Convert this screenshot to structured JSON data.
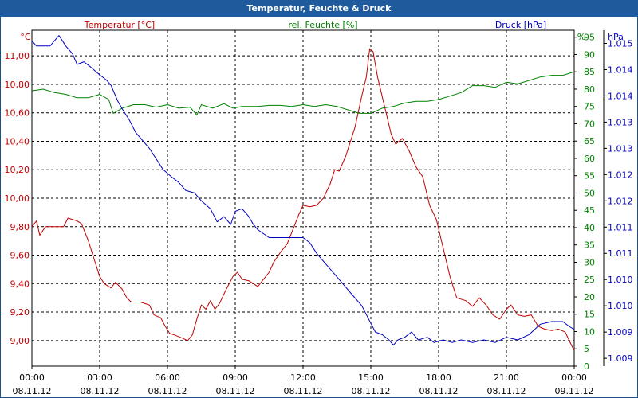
{
  "window": {
    "title": "Temperatur, Feuchte & Druck"
  },
  "colors": {
    "temperature": "#c00000",
    "humidity": "#008000",
    "pressure": "#0000c0",
    "titlebar": "#1e5a9c",
    "grid": "#000000"
  },
  "chart_data": {
    "type": "line",
    "title": "Temperatur, Feuchte & Druck",
    "grid": true,
    "x": {
      "range_hours": [
        0,
        24
      ],
      "ticks": [
        {
          "h": 0,
          "time": "00:00",
          "date": "08.11.12"
        },
        {
          "h": 3,
          "time": "03:00",
          "date": "08.11.12"
        },
        {
          "h": 6,
          "time": "06:00",
          "date": "08.11.12"
        },
        {
          "h": 9,
          "time": "09:00",
          "date": "08.11.12"
        },
        {
          "h": 12,
          "time": "12:00",
          "date": "08.11.12"
        },
        {
          "h": 15,
          "time": "15:00",
          "date": "08.11.12"
        },
        {
          "h": 18,
          "time": "18:00",
          "date": "08.11.12"
        },
        {
          "h": 21,
          "time": "21:00",
          "date": "08.11.12"
        },
        {
          "h": 24,
          "time": "00:00",
          "date": "09.11.12"
        }
      ]
    },
    "axes": {
      "temperature": {
        "label": "Temperatur [°C]",
        "unit": "°C",
        "range": [
          8.82,
          11.18
        ],
        "ticks": [
          9.0,
          9.2,
          9.4,
          9.6,
          9.8,
          10.0,
          10.2,
          10.4,
          10.6,
          10.8,
          11.0
        ],
        "tick_labels": [
          "9,00",
          "9,20",
          "9,40",
          "9,60",
          "9,80",
          "10,00",
          "10,20",
          "10,40",
          "10,60",
          "10,80",
          "11,00"
        ]
      },
      "humidity": {
        "label": "rel. Feuchte [%]",
        "unit": "%",
        "range": [
          0,
          97
        ],
        "ticks": [
          0,
          5,
          10,
          15,
          20,
          25,
          30,
          35,
          40,
          45,
          50,
          55,
          60,
          65,
          70,
          75,
          80,
          85,
          90,
          95
        ],
        "tick_labels": [
          "0",
          "5",
          "10",
          "15",
          "20",
          "25",
          "30",
          "35",
          "40",
          "45",
          "50",
          "55",
          "60",
          "65",
          "70",
          "75",
          "80",
          "85",
          "90",
          "95"
        ]
      },
      "pressure": {
        "label": "Druck [hPa]",
        "unit": "hPa",
        "range": [
          1008.85,
          1015.25
        ],
        "ticks": [
          1009.0,
          1009.5,
          1010.0,
          1010.5,
          1011.0,
          1011.5,
          1012.0,
          1012.5,
          1013.0,
          1013.5,
          1014.0,
          1014.5,
          1015.0
        ],
        "tick_labels": [
          "1.009",
          "1.009",
          "1.010",
          "1.010",
          "1.011",
          "1.011",
          "1.012",
          "1.012",
          "1.013",
          "1.013",
          "1.014",
          "1.014",
          "1.015"
        ]
      }
    },
    "series": [
      {
        "name": "Temperatur",
        "axis": "temperature",
        "color": "#c00000",
        "points": [
          [
            0,
            9.8
          ],
          [
            0.2,
            9.84
          ],
          [
            0.35,
            9.74
          ],
          [
            0.6,
            9.8
          ],
          [
            1.0,
            9.8
          ],
          [
            1.4,
            9.8
          ],
          [
            1.6,
            9.86
          ],
          [
            2.0,
            9.84
          ],
          [
            2.2,
            9.82
          ],
          [
            2.5,
            9.7
          ],
          [
            2.8,
            9.55
          ],
          [
            3.0,
            9.45
          ],
          [
            3.2,
            9.4
          ],
          [
            3.5,
            9.37
          ],
          [
            3.7,
            9.41
          ],
          [
            4.0,
            9.36
          ],
          [
            4.2,
            9.3
          ],
          [
            4.4,
            9.27
          ],
          [
            4.8,
            9.27
          ],
          [
            5.2,
            9.25
          ],
          [
            5.4,
            9.18
          ],
          [
            5.7,
            9.16
          ],
          [
            5.9,
            9.1
          ],
          [
            6.1,
            9.05
          ],
          [
            6.3,
            9.04
          ],
          [
            6.6,
            9.02
          ],
          [
            6.9,
            9.0
          ],
          [
            7.1,
            9.04
          ],
          [
            7.3,
            9.15
          ],
          [
            7.5,
            9.25
          ],
          [
            7.7,
            9.22
          ],
          [
            7.9,
            9.28
          ],
          [
            8.1,
            9.22
          ],
          [
            8.3,
            9.26
          ],
          [
            8.6,
            9.36
          ],
          [
            8.9,
            9.45
          ],
          [
            9.1,
            9.48
          ],
          [
            9.3,
            9.43
          ],
          [
            9.6,
            9.42
          ],
          [
            9.8,
            9.4
          ],
          [
            10.0,
            9.38
          ],
          [
            10.2,
            9.42
          ],
          [
            10.5,
            9.48
          ],
          [
            10.7,
            9.55
          ],
          [
            11.0,
            9.62
          ],
          [
            11.3,
            9.68
          ],
          [
            11.6,
            9.8
          ],
          [
            11.8,
            9.88
          ],
          [
            12.0,
            9.95
          ],
          [
            12.3,
            9.94
          ],
          [
            12.6,
            9.95
          ],
          [
            12.9,
            10.0
          ],
          [
            13.2,
            10.1
          ],
          [
            13.4,
            10.2
          ],
          [
            13.6,
            10.19
          ],
          [
            13.9,
            10.3
          ],
          [
            14.1,
            10.4
          ],
          [
            14.3,
            10.5
          ],
          [
            14.6,
            10.72
          ],
          [
            14.8,
            10.85
          ],
          [
            14.95,
            11.05
          ],
          [
            15.1,
            11.03
          ],
          [
            15.3,
            10.85
          ],
          [
            15.6,
            10.65
          ],
          [
            15.9,
            10.45
          ],
          [
            16.1,
            10.38
          ],
          [
            16.4,
            10.42
          ],
          [
            16.7,
            10.33
          ],
          [
            17.0,
            10.22
          ],
          [
            17.3,
            10.15
          ],
          [
            17.6,
            9.95
          ],
          [
            17.9,
            9.85
          ],
          [
            18.2,
            9.65
          ],
          [
            18.5,
            9.45
          ],
          [
            18.8,
            9.3
          ],
          [
            19.2,
            9.28
          ],
          [
            19.5,
            9.24
          ],
          [
            19.8,
            9.3
          ],
          [
            20.1,
            9.25
          ],
          [
            20.4,
            9.18
          ],
          [
            20.7,
            9.15
          ],
          [
            21.0,
            9.22
          ],
          [
            21.2,
            9.25
          ],
          [
            21.5,
            9.18
          ],
          [
            21.8,
            9.17
          ],
          [
            22.1,
            9.18
          ],
          [
            22.4,
            9.1
          ],
          [
            22.7,
            9.08
          ],
          [
            23.0,
            9.07
          ],
          [
            23.3,
            9.08
          ],
          [
            23.6,
            9.06
          ],
          [
            23.9,
            8.96
          ],
          [
            24.0,
            8.93
          ]
        ]
      },
      {
        "name": "rel. Feuchte",
        "axis": "humidity",
        "color": "#008000",
        "points": [
          [
            0,
            79.5
          ],
          [
            0.5,
            80
          ],
          [
            1.0,
            79
          ],
          [
            1.5,
            78.5
          ],
          [
            2.0,
            77.5
          ],
          [
            2.5,
            77.5
          ],
          [
            3.0,
            78.5
          ],
          [
            3.4,
            77
          ],
          [
            3.6,
            73
          ],
          [
            4.0,
            74.5
          ],
          [
            4.5,
            75.5
          ],
          [
            5.0,
            75.5
          ],
          [
            5.5,
            74.8
          ],
          [
            6.0,
            75.5
          ],
          [
            6.5,
            74.5
          ],
          [
            7.0,
            74.8
          ],
          [
            7.3,
            72.5
          ],
          [
            7.5,
            75.5
          ],
          [
            8.0,
            74.5
          ],
          [
            8.5,
            75.8
          ],
          [
            8.9,
            74.5
          ],
          [
            9.3,
            75
          ],
          [
            10.0,
            75
          ],
          [
            10.5,
            75.3
          ],
          [
            11.0,
            75.3
          ],
          [
            11.5,
            75
          ],
          [
            12.0,
            75.5
          ],
          [
            12.5,
            75
          ],
          [
            13.0,
            75.5
          ],
          [
            13.5,
            75
          ],
          [
            14.0,
            74
          ],
          [
            14.5,
            73
          ],
          [
            15.0,
            73
          ],
          [
            15.5,
            74.5
          ],
          [
            16.0,
            75
          ],
          [
            16.5,
            76
          ],
          [
            17.0,
            76.5
          ],
          [
            17.5,
            76.5
          ],
          [
            18.0,
            77
          ],
          [
            18.5,
            78
          ],
          [
            19.0,
            79
          ],
          [
            19.5,
            81
          ],
          [
            20.0,
            81
          ],
          [
            20.5,
            80.5
          ],
          [
            21.0,
            82
          ],
          [
            21.5,
            81.5
          ],
          [
            22.0,
            82.5
          ],
          [
            22.5,
            83.5
          ],
          [
            23.0,
            84
          ],
          [
            23.5,
            84
          ],
          [
            24.0,
            85
          ]
        ]
      },
      {
        "name": "Druck",
        "axis": "pressure",
        "color": "#0000c0",
        "points": [
          [
            0,
            1015.05
          ],
          [
            0.2,
            1014.95
          ],
          [
            0.8,
            1014.95
          ],
          [
            1.0,
            1015.05
          ],
          [
            1.2,
            1015.15
          ],
          [
            1.5,
            1014.95
          ],
          [
            1.8,
            1014.8
          ],
          [
            2.0,
            1014.6
          ],
          [
            2.3,
            1014.65
          ],
          [
            2.6,
            1014.55
          ],
          [
            3.0,
            1014.4
          ],
          [
            3.3,
            1014.3
          ],
          [
            3.5,
            1014.2
          ],
          [
            3.8,
            1013.9
          ],
          [
            4.0,
            1013.75
          ],
          [
            4.3,
            1013.55
          ],
          [
            4.6,
            1013.3
          ],
          [
            4.9,
            1013.15
          ],
          [
            5.2,
            1013.0
          ],
          [
            5.5,
            1012.8
          ],
          [
            5.8,
            1012.6
          ],
          [
            6.2,
            1012.45
          ],
          [
            6.5,
            1012.35
          ],
          [
            6.8,
            1012.2
          ],
          [
            7.2,
            1012.15
          ],
          [
            7.5,
            1012.0
          ],
          [
            7.9,
            1011.85
          ],
          [
            8.2,
            1011.6
          ],
          [
            8.5,
            1011.7
          ],
          [
            8.8,
            1011.55
          ],
          [
            9.0,
            1011.8
          ],
          [
            9.3,
            1011.85
          ],
          [
            9.6,
            1011.7
          ],
          [
            9.8,
            1011.55
          ],
          [
            10.0,
            1011.45
          ],
          [
            10.5,
            1011.3
          ],
          [
            11.0,
            1011.3
          ],
          [
            11.5,
            1011.3
          ],
          [
            12.0,
            1011.3
          ],
          [
            12.3,
            1011.2
          ],
          [
            12.6,
            1011.0
          ],
          [
            13.0,
            1010.8
          ],
          [
            13.4,
            1010.6
          ],
          [
            13.8,
            1010.4
          ],
          [
            14.2,
            1010.2
          ],
          [
            14.6,
            1010.0
          ],
          [
            14.9,
            1009.75
          ],
          [
            15.2,
            1009.5
          ],
          [
            15.5,
            1009.45
          ],
          [
            15.8,
            1009.35
          ],
          [
            16.0,
            1009.25
          ],
          [
            16.2,
            1009.35
          ],
          [
            16.5,
            1009.4
          ],
          [
            16.8,
            1009.5
          ],
          [
            17.1,
            1009.35
          ],
          [
            17.5,
            1009.4
          ],
          [
            17.8,
            1009.3
          ],
          [
            18.2,
            1009.35
          ],
          [
            18.6,
            1009.3
          ],
          [
            19.0,
            1009.35
          ],
          [
            19.5,
            1009.3
          ],
          [
            20.0,
            1009.35
          ],
          [
            20.5,
            1009.3
          ],
          [
            21.0,
            1009.4
          ],
          [
            21.5,
            1009.35
          ],
          [
            22.0,
            1009.45
          ],
          [
            22.5,
            1009.65
          ],
          [
            23.0,
            1009.7
          ],
          [
            23.5,
            1009.7
          ],
          [
            23.8,
            1009.6
          ],
          [
            24.0,
            1009.55
          ]
        ]
      }
    ]
  }
}
